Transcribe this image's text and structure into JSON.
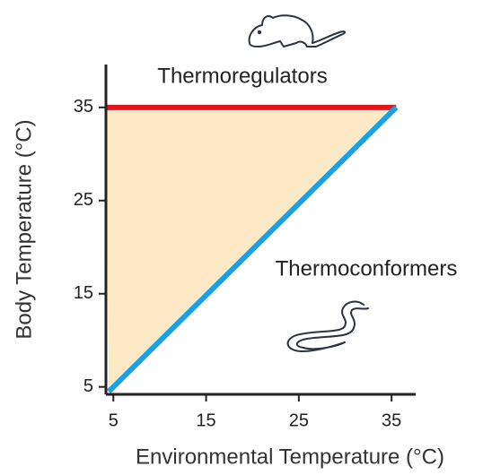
{
  "chart_data": {
    "type": "line",
    "x_label": "Environmental Temperature (°C)",
    "y_label": "Body Temperature (°C)",
    "xlim": [
      4.2,
      37.6
    ],
    "ylim": [
      4.2,
      39.6
    ],
    "xticks": [
      5,
      15,
      25,
      35
    ],
    "yticks": [
      5,
      15,
      25,
      35
    ],
    "fill_color": "#fde9c6",
    "series": [
      {
        "name": "Thermoregulators",
        "color": "#e8141b",
        "x": [
          4.2,
          35.5
        ],
        "values": [
          35,
          35
        ]
      },
      {
        "name": "Thermoconformers",
        "color": "#1ba1e2",
        "x": [
          4.5,
          35.5
        ],
        "values": [
          4.5,
          35
        ]
      }
    ]
  }
}
